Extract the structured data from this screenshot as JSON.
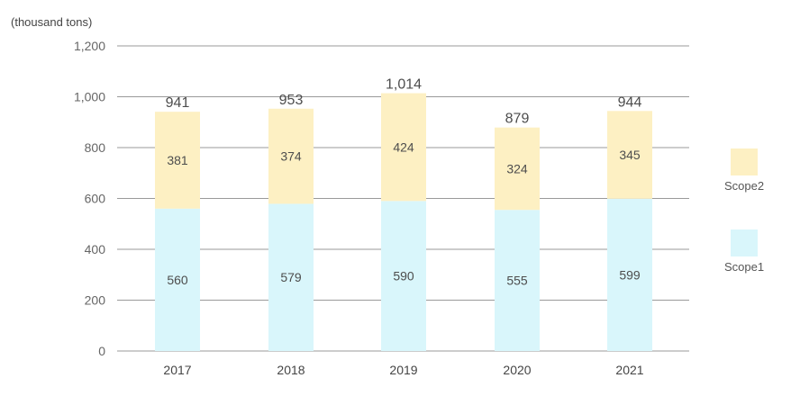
{
  "chart_data": {
    "type": "bar",
    "stacked": true,
    "unit_label": "(thousand tons)",
    "categories": [
      "2017",
      "2018",
      "2019",
      "2020",
      "2021"
    ],
    "series": [
      {
        "name": "Scope1",
        "values": [
          560,
          579,
          590,
          555,
          599
        ],
        "color": "#d9f6fb"
      },
      {
        "name": "Scope2",
        "values": [
          381,
          374,
          424,
          324,
          345
        ],
        "color": "#fdf0c3"
      }
    ],
    "totals": [
      "941",
      "953",
      "1,014",
      "879",
      "944"
    ],
    "ylim": [
      0,
      1200
    ],
    "yticks": [
      "0",
      "200",
      "400",
      "600",
      "800",
      "1,000",
      "1,200"
    ],
    "grid": true,
    "legend_position": "right"
  }
}
